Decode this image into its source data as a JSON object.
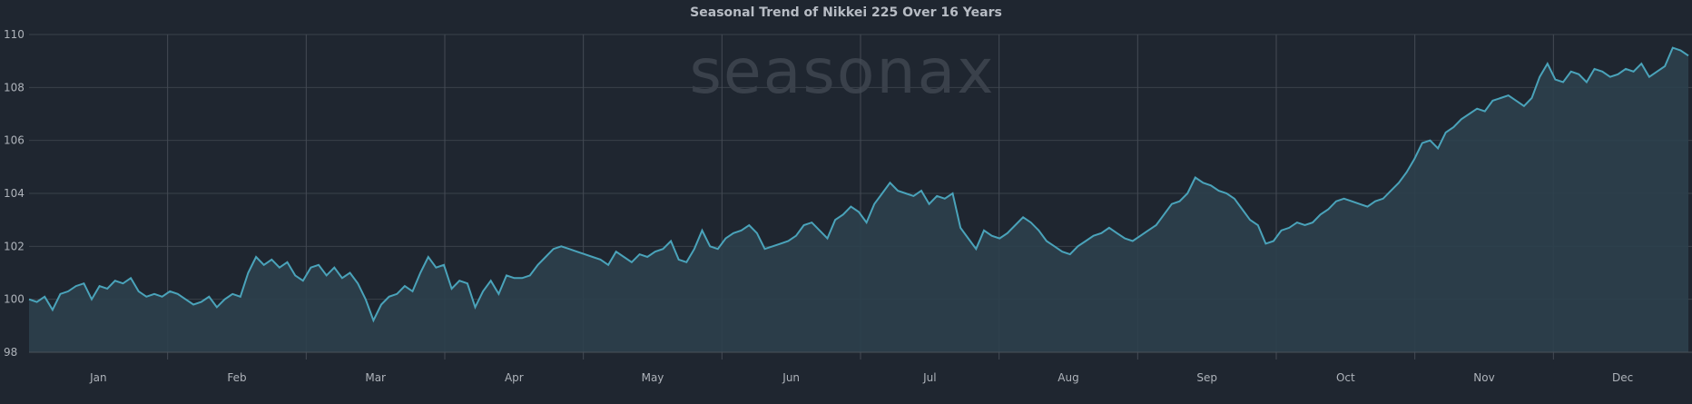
{
  "chart_data": {
    "type": "area",
    "title": "Seasonal Trend of Nikkei 225 Over 16 Years",
    "watermark": "seasonax",
    "xlabel": "",
    "ylabel": "",
    "ylim": [
      98,
      110
    ],
    "yticks": [
      98,
      100,
      102,
      104,
      106,
      108,
      110
    ],
    "ytick_labels": [
      "98",
      "100",
      "102",
      "104",
      "106",
      "108",
      "110"
    ],
    "months": [
      "Jan",
      "Feb",
      "Mar",
      "Apr",
      "May",
      "Jun",
      "Jul",
      "Aug",
      "Sep",
      "Oct",
      "Nov",
      "Dec"
    ],
    "grid": "on",
    "colors": {
      "background": "#1f2630",
      "line": "#4aa3ba",
      "area": "#2c404c",
      "grid": "#3a414a"
    },
    "series": [
      {
        "values": [
          100.0,
          99.9,
          100.1,
          99.6,
          100.2,
          100.3,
          100.5,
          100.6,
          100.0,
          100.5,
          100.4,
          100.7,
          100.6,
          100.8,
          100.3,
          100.1,
          100.2,
          100.1,
          100.3,
          100.2,
          100.0,
          99.8,
          99.9,
          100.1,
          99.7,
          100.0,
          100.2,
          100.1,
          101.0,
          101.6,
          101.3,
          101.5,
          101.2,
          101.4,
          100.9,
          100.7,
          101.2,
          101.3,
          100.9,
          101.2,
          100.8,
          101.0,
          100.6,
          100.0,
          99.2,
          99.8,
          100.1,
          100.2,
          100.5,
          100.3,
          101.0,
          101.6,
          101.2,
          101.3,
          100.4,
          100.7,
          100.6,
          99.7,
          100.3,
          100.7,
          100.2,
          100.9,
          100.8,
          100.8,
          100.9,
          101.3,
          101.6,
          101.9,
          102.0,
          101.9,
          101.8,
          101.7,
          101.6,
          101.5,
          101.3,
          101.8,
          101.6,
          101.4,
          101.7,
          101.6,
          101.8,
          101.9,
          102.2,
          101.5,
          101.4,
          101.9,
          102.6,
          102.0,
          101.9,
          102.3,
          102.5,
          102.6,
          102.8,
          102.5,
          101.9,
          102.0,
          102.1,
          102.2,
          102.4,
          102.8,
          102.9,
          102.6,
          102.3,
          103.0,
          103.2,
          103.5,
          103.3,
          102.9,
          103.6,
          104.0,
          104.4,
          104.1,
          104.0,
          103.9,
          104.1,
          103.6,
          103.9,
          103.8,
          104.0,
          102.7,
          102.3,
          101.9,
          102.6,
          102.4,
          102.3,
          102.5,
          102.8,
          103.1,
          102.9,
          102.6,
          102.2,
          102.0,
          101.8,
          101.7,
          102.0,
          102.2,
          102.4,
          102.5,
          102.7,
          102.5,
          102.3,
          102.2,
          102.4,
          102.6,
          102.8,
          103.2,
          103.6,
          103.7,
          104.0,
          104.6,
          104.4,
          104.3,
          104.1,
          104.0,
          103.8,
          103.4,
          103.0,
          102.8,
          102.1,
          102.2,
          102.6,
          102.7,
          102.9,
          102.8,
          102.9,
          103.2,
          103.4,
          103.7,
          103.8,
          103.7,
          103.6,
          103.5,
          103.7,
          103.8,
          104.1,
          104.4,
          104.8,
          105.3,
          105.9,
          106.0,
          105.7,
          106.3,
          106.5,
          106.8,
          107.0,
          107.2,
          107.1,
          107.5,
          107.6,
          107.7,
          107.5,
          107.3,
          107.6,
          108.4,
          108.9,
          108.3,
          108.2,
          108.6,
          108.5,
          108.2,
          108.7,
          108.6,
          108.4,
          108.5,
          108.7,
          108.6,
          108.9,
          108.4,
          108.6,
          108.8,
          109.5,
          109.4,
          109.2
        ]
      }
    ]
  }
}
